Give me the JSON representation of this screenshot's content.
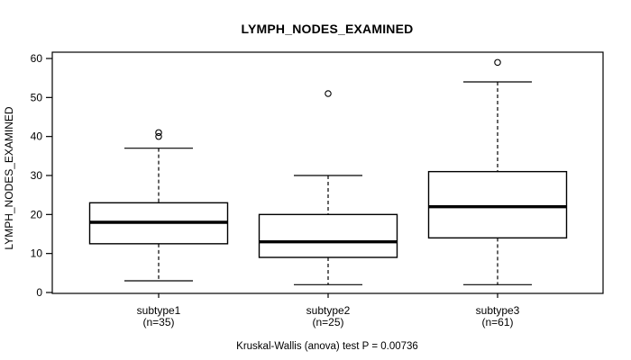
{
  "chart_data": {
    "type": "boxplot",
    "title": "LYMPH_NODES_EXAMINED",
    "ylabel": "LYMPH_NODES_EXAMINED",
    "xlabel": "",
    "caption": "Kruskal-Wallis (anova) test P = 0.00736",
    "ylim": [
      0,
      60
    ],
    "yticks": [
      0,
      10,
      20,
      30,
      40,
      50,
      60
    ],
    "grid": false,
    "legend": "none",
    "line_color": "#000000",
    "background_color": "#ffffff",
    "groups": [
      {
        "label": "subtype1",
        "sublabel": "(n=35)",
        "n": 35,
        "lower_whisker": 3,
        "q1": 12.5,
        "median": 18,
        "q3": 23,
        "upper_whisker": 37,
        "outliers": [
          40,
          41
        ]
      },
      {
        "label": "subtype2",
        "sublabel": "(n=25)",
        "n": 25,
        "lower_whisker": 2,
        "q1": 9,
        "median": 13,
        "q3": 20,
        "upper_whisker": 30,
        "outliers": [
          51
        ]
      },
      {
        "label": "subtype3",
        "sublabel": "(n=61)",
        "n": 61,
        "lower_whisker": 2,
        "q1": 14,
        "median": 22,
        "q3": 31,
        "upper_whisker": 54,
        "outliers": [
          59
        ]
      }
    ]
  }
}
